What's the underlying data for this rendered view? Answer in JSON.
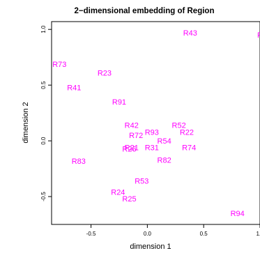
{
  "chart_data": {
    "type": "scatter",
    "title": "2−dimensional embedding of Region",
    "xlabel": "dimension 1",
    "ylabel": "dimension 2",
    "xlim": [
      -0.85,
      1.0
    ],
    "ylim": [
      -0.75,
      1.07
    ],
    "x_ticks": [
      -0.5,
      0.0,
      0.5,
      1.0
    ],
    "x_tick_labels": [
      "-0.5",
      "0.0",
      "0.5",
      "1.0"
    ],
    "y_ticks": [
      -0.5,
      0.0,
      0.5,
      1.0
    ],
    "y_tick_labels": [
      "-0.5",
      "0.0",
      "0.5",
      "1.0"
    ],
    "grid": false,
    "label_color": "#ff00ff",
    "points": [
      {
        "label": "R43",
        "x": 0.38,
        "y": 0.97
      },
      {
        "label": "R",
        "x": 1.0,
        "y": 0.95
      },
      {
        "label": "R73",
        "x": -0.78,
        "y": 0.69
      },
      {
        "label": "R23",
        "x": -0.38,
        "y": 0.61
      },
      {
        "label": "R41",
        "x": -0.65,
        "y": 0.48
      },
      {
        "label": "R91",
        "x": -0.25,
        "y": 0.35
      },
      {
        "label": "R42",
        "x": -0.14,
        "y": 0.14
      },
      {
        "label": "R52",
        "x": 0.28,
        "y": 0.14
      },
      {
        "label": "R93",
        "x": 0.04,
        "y": 0.08
      },
      {
        "label": "R22",
        "x": 0.35,
        "y": 0.08
      },
      {
        "label": "R72",
        "x": -0.1,
        "y": 0.05
      },
      {
        "label": "R54",
        "x": 0.15,
        "y": 0.0
      },
      {
        "label": "R21",
        "x": -0.14,
        "y": -0.06
      },
      {
        "label": "R26",
        "x": -0.16,
        "y": -0.07
      },
      {
        "label": "R31",
        "x": 0.04,
        "y": -0.06
      },
      {
        "label": "R74",
        "x": 0.37,
        "y": -0.06
      },
      {
        "label": "R83",
        "x": -0.61,
        "y": -0.18
      },
      {
        "label": "R82",
        "x": 0.15,
        "y": -0.17
      },
      {
        "label": "R53",
        "x": -0.05,
        "y": -0.36
      },
      {
        "label": "R24",
        "x": -0.26,
        "y": -0.46
      },
      {
        "label": "R25",
        "x": -0.16,
        "y": -0.52
      },
      {
        "label": "R94",
        "x": 0.8,
        "y": -0.65
      }
    ]
  }
}
